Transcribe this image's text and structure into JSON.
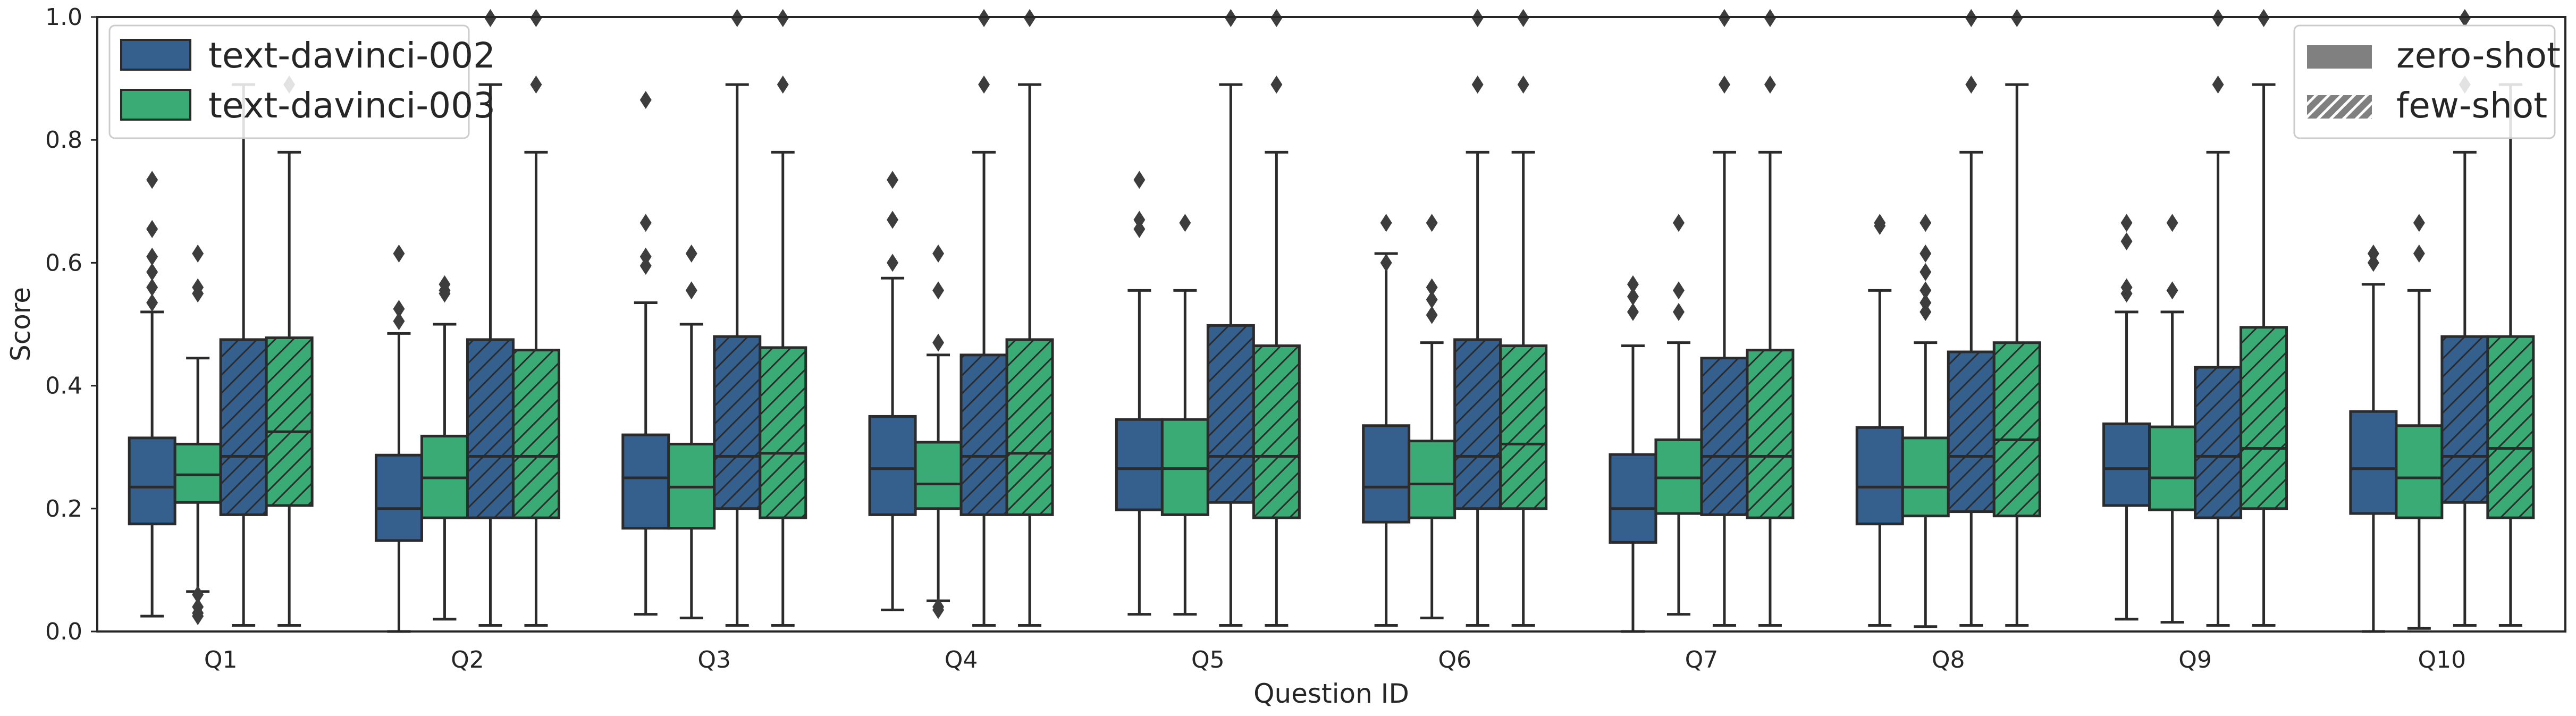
{
  "chart_data": {
    "type": "boxplot",
    "xlabel": "Question ID",
    "ylabel": "Score",
    "ylim": [
      0.0,
      1.0
    ],
    "yticks": [
      "0.0",
      "0.2",
      "0.4",
      "0.6",
      "0.8",
      "1.0"
    ],
    "grid": false,
    "categories": [
      "Q1",
      "Q2",
      "Q3",
      "Q4",
      "Q5",
      "Q6",
      "Q7",
      "Q8",
      "Q9",
      "Q10"
    ],
    "model_legend": {
      "placement": "top-left",
      "entries": [
        {
          "name": "text-davinci-002",
          "color": "#355f8d"
        },
        {
          "name": "text-davinci-003",
          "color": "#3bab75"
        }
      ]
    },
    "style_legend": {
      "placement": "top-right",
      "entries": [
        {
          "name": "zero-shot",
          "pattern": "solid"
        },
        {
          "name": "few-shot",
          "pattern": "hatched"
        }
      ]
    },
    "series": [
      {
        "model": "text-davinci-002",
        "setting": "zero-shot",
        "color": "#355f8d",
        "hatched": false,
        "boxes": [
          {
            "q1": 0.175,
            "median": 0.235,
            "q3": 0.315,
            "whislo": 0.025,
            "whishi": 0.52,
            "fliers": [
              0.735,
              0.655,
              0.61,
              0.585,
              0.56,
              0.535
            ]
          },
          {
            "q1": 0.148,
            "median": 0.2,
            "q3": 0.287,
            "whislo": 0.0,
            "whishi": 0.485,
            "fliers": [
              0.615,
              0.525,
              0.505
            ]
          },
          {
            "q1": 0.168,
            "median": 0.25,
            "q3": 0.32,
            "whislo": 0.028,
            "whishi": 0.535,
            "fliers": [
              0.865,
              0.665,
              0.61,
              0.595
            ]
          },
          {
            "q1": 0.19,
            "median": 0.265,
            "q3": 0.35,
            "whislo": 0.035,
            "whishi": 0.575,
            "fliers": [
              0.735,
              0.67,
              0.6
            ]
          },
          {
            "q1": 0.198,
            "median": 0.265,
            "q3": 0.345,
            "whislo": 0.028,
            "whishi": 0.555,
            "fliers": [
              0.735,
              0.67,
              0.655
            ]
          },
          {
            "q1": 0.178,
            "median": 0.235,
            "q3": 0.335,
            "whislo": 0.01,
            "whishi": 0.615,
            "fliers": [
              0.665,
              0.6
            ]
          },
          {
            "q1": 0.145,
            "median": 0.2,
            "q3": 0.288,
            "whislo": 0.0,
            "whishi": 0.465,
            "fliers": [
              0.565,
              0.545,
              0.52
            ]
          },
          {
            "q1": 0.175,
            "median": 0.235,
            "q3": 0.332,
            "whislo": 0.01,
            "whishi": 0.555,
            "fliers": [
              0.665,
              0.66
            ]
          },
          {
            "q1": 0.205,
            "median": 0.265,
            "q3": 0.338,
            "whislo": 0.02,
            "whishi": 0.52,
            "fliers": [
              0.665,
              0.635,
              0.56,
              0.55
            ]
          },
          {
            "q1": 0.192,
            "median": 0.265,
            "q3": 0.358,
            "whislo": 0.0,
            "whishi": 0.565,
            "fliers": [
              0.615,
              0.6
            ]
          }
        ]
      },
      {
        "model": "text-davinci-003",
        "setting": "zero-shot",
        "color": "#3bab75",
        "hatched": false,
        "boxes": [
          {
            "q1": 0.21,
            "median": 0.255,
            "q3": 0.305,
            "whislo": 0.065,
            "whishi": 0.445,
            "fliers": [
              0.615,
              0.56,
              0.55,
              0.06,
              0.04,
              0.03,
              0.025
            ]
          },
          {
            "q1": 0.185,
            "median": 0.25,
            "q3": 0.318,
            "whislo": 0.02,
            "whishi": 0.5,
            "fliers": [
              0.565,
              0.555,
              0.55
            ]
          },
          {
            "q1": 0.168,
            "median": 0.235,
            "q3": 0.305,
            "whislo": 0.022,
            "whishi": 0.5,
            "fliers": [
              0.615,
              0.555
            ]
          },
          {
            "q1": 0.2,
            "median": 0.24,
            "q3": 0.308,
            "whislo": 0.05,
            "whishi": 0.45,
            "fliers": [
              0.615,
              0.555,
              0.47,
              0.04,
              0.035
            ]
          },
          {
            "q1": 0.19,
            "median": 0.265,
            "q3": 0.345,
            "whislo": 0.028,
            "whishi": 0.555,
            "fliers": [
              0.665
            ]
          },
          {
            "q1": 0.185,
            "median": 0.24,
            "q3": 0.31,
            "whislo": 0.022,
            "whishi": 0.47,
            "fliers": [
              0.665,
              0.56,
              0.54,
              0.515
            ]
          },
          {
            "q1": 0.192,
            "median": 0.25,
            "q3": 0.312,
            "whislo": 0.028,
            "whishi": 0.47,
            "fliers": [
              0.665,
              0.555,
              0.52
            ]
          },
          {
            "q1": 0.188,
            "median": 0.235,
            "q3": 0.315,
            "whislo": 0.008,
            "whishi": 0.47,
            "fliers": [
              0.665,
              0.615,
              0.585,
              0.555,
              0.535,
              0.52
            ]
          },
          {
            "q1": 0.198,
            "median": 0.25,
            "q3": 0.333,
            "whislo": 0.015,
            "whishi": 0.52,
            "fliers": [
              0.665,
              0.555
            ]
          },
          {
            "q1": 0.185,
            "median": 0.25,
            "q3": 0.335,
            "whislo": 0.005,
            "whishi": 0.555,
            "fliers": [
              0.665,
              0.615
            ]
          }
        ]
      },
      {
        "model": "text-davinci-002",
        "setting": "few-shot",
        "color": "#355f8d",
        "hatched": true,
        "boxes": [
          {
            "q1": 0.19,
            "median": 0.285,
            "q3": 0.475,
            "whislo": 0.01,
            "whishi": 0.89,
            "fliers": []
          },
          {
            "q1": 0.185,
            "median": 0.285,
            "q3": 0.475,
            "whislo": 0.01,
            "whishi": 0.89,
            "fliers": [
              1.0
            ]
          },
          {
            "q1": 0.2,
            "median": 0.285,
            "q3": 0.48,
            "whislo": 0.01,
            "whishi": 0.89,
            "fliers": [
              1.0
            ]
          },
          {
            "q1": 0.19,
            "median": 0.285,
            "q3": 0.45,
            "whislo": 0.01,
            "whishi": 0.78,
            "fliers": [
              0.89,
              1.0
            ]
          },
          {
            "q1": 0.21,
            "median": 0.285,
            "q3": 0.498,
            "whislo": 0.01,
            "whishi": 0.89,
            "fliers": [
              1.0
            ]
          },
          {
            "q1": 0.2,
            "median": 0.285,
            "q3": 0.475,
            "whislo": 0.01,
            "whishi": 0.78,
            "fliers": [
              0.89,
              1.0
            ]
          },
          {
            "q1": 0.19,
            "median": 0.285,
            "q3": 0.445,
            "whislo": 0.01,
            "whishi": 0.78,
            "fliers": [
              0.89,
              1.0
            ]
          },
          {
            "q1": 0.195,
            "median": 0.285,
            "q3": 0.455,
            "whislo": 0.01,
            "whishi": 0.78,
            "fliers": [
              0.89,
              1.0
            ]
          },
          {
            "q1": 0.185,
            "median": 0.285,
            "q3": 0.43,
            "whislo": 0.01,
            "whishi": 0.78,
            "fliers": [
              0.89,
              1.0
            ]
          },
          {
            "q1": 0.21,
            "median": 0.285,
            "q3": 0.48,
            "whislo": 0.01,
            "whishi": 0.78,
            "fliers": [
              0.89,
              1.0
            ]
          }
        ]
      },
      {
        "model": "text-davinci-003",
        "setting": "few-shot",
        "color": "#3bab75",
        "hatched": true,
        "boxes": [
          {
            "q1": 0.205,
            "median": 0.325,
            "q3": 0.478,
            "whislo": 0.01,
            "whishi": 0.78,
            "fliers": [
              0.89
            ]
          },
          {
            "q1": 0.185,
            "median": 0.285,
            "q3": 0.458,
            "whislo": 0.01,
            "whishi": 0.78,
            "fliers": [
              0.89,
              1.0
            ]
          },
          {
            "q1": 0.185,
            "median": 0.29,
            "q3": 0.462,
            "whislo": 0.01,
            "whishi": 0.78,
            "fliers": [
              0.89,
              1.0
            ]
          },
          {
            "q1": 0.19,
            "median": 0.29,
            "q3": 0.475,
            "whislo": 0.01,
            "whishi": 0.89,
            "fliers": [
              1.0
            ]
          },
          {
            "q1": 0.185,
            "median": 0.285,
            "q3": 0.465,
            "whislo": 0.01,
            "whishi": 0.78,
            "fliers": [
              0.89,
              1.0
            ]
          },
          {
            "q1": 0.2,
            "median": 0.305,
            "q3": 0.465,
            "whislo": 0.01,
            "whishi": 0.78,
            "fliers": [
              0.89,
              1.0
            ]
          },
          {
            "q1": 0.185,
            "median": 0.285,
            "q3": 0.458,
            "whislo": 0.01,
            "whishi": 0.78,
            "fliers": [
              0.89,
              1.0
            ]
          },
          {
            "q1": 0.188,
            "median": 0.312,
            "q3": 0.47,
            "whislo": 0.01,
            "whishi": 0.89,
            "fliers": [
              1.0
            ]
          },
          {
            "q1": 0.2,
            "median": 0.298,
            "q3": 0.495,
            "whislo": 0.01,
            "whishi": 0.89,
            "fliers": [
              1.0
            ]
          },
          {
            "q1": 0.185,
            "median": 0.298,
            "q3": 0.48,
            "whislo": 0.01,
            "whishi": 0.89,
            "fliers": []
          }
        ]
      }
    ]
  }
}
